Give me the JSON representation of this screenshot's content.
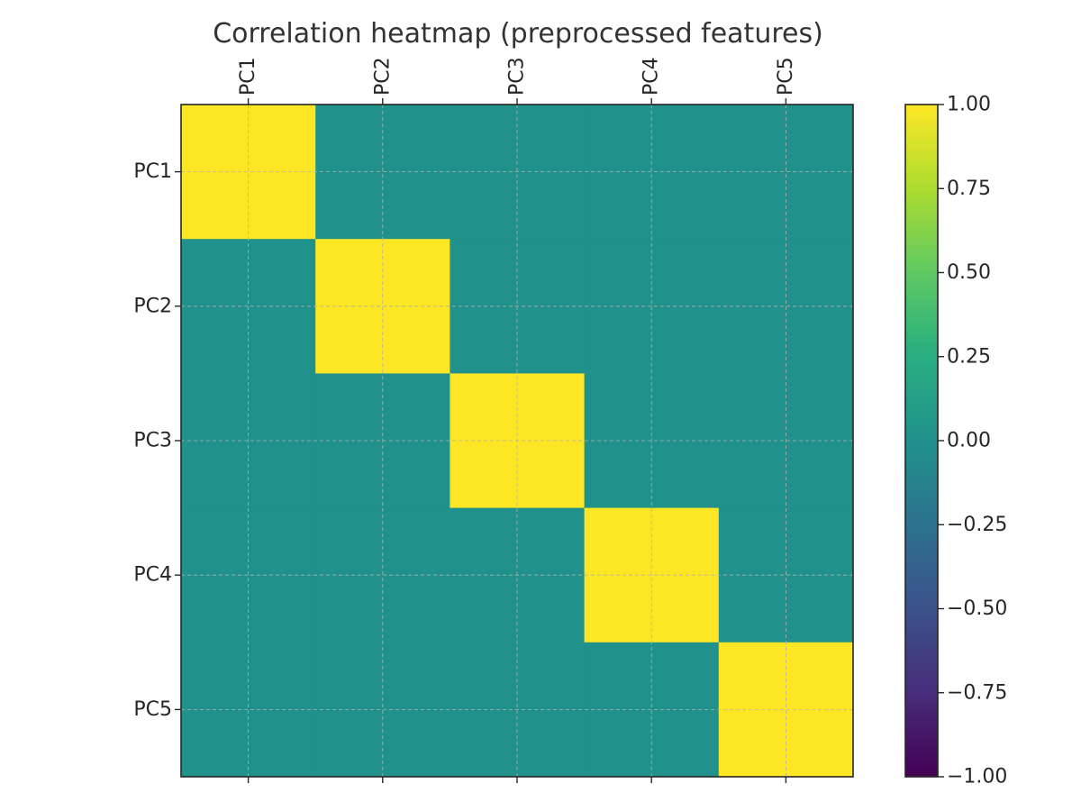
{
  "chart_data": {
    "type": "heatmap",
    "title": "Correlation heatmap (preprocessed features)",
    "x_categories": [
      "PC1",
      "PC2",
      "PC3",
      "PC4",
      "PC5"
    ],
    "y_categories": [
      "PC1",
      "PC2",
      "PC3",
      "PC4",
      "PC5"
    ],
    "values": [
      [
        1.0,
        0.0,
        0.0,
        0.0,
        0.0
      ],
      [
        0.0,
        1.0,
        0.0,
        0.0,
        0.0
      ],
      [
        0.0,
        0.0,
        1.0,
        0.0,
        0.0
      ],
      [
        0.0,
        0.0,
        0.0,
        1.0,
        0.0
      ],
      [
        0.0,
        0.0,
        0.0,
        0.0,
        1.0
      ]
    ],
    "colormap": "viridis",
    "vmin": -1.0,
    "vmax": 1.0,
    "colorbar_ticks": [
      "1.00",
      "0.75",
      "0.50",
      "0.25",
      "0.00",
      "−0.25",
      "−0.50",
      "−0.75",
      "−1.00"
    ],
    "x_tick_position": "top",
    "grid": true,
    "colorbar_position": "right"
  }
}
